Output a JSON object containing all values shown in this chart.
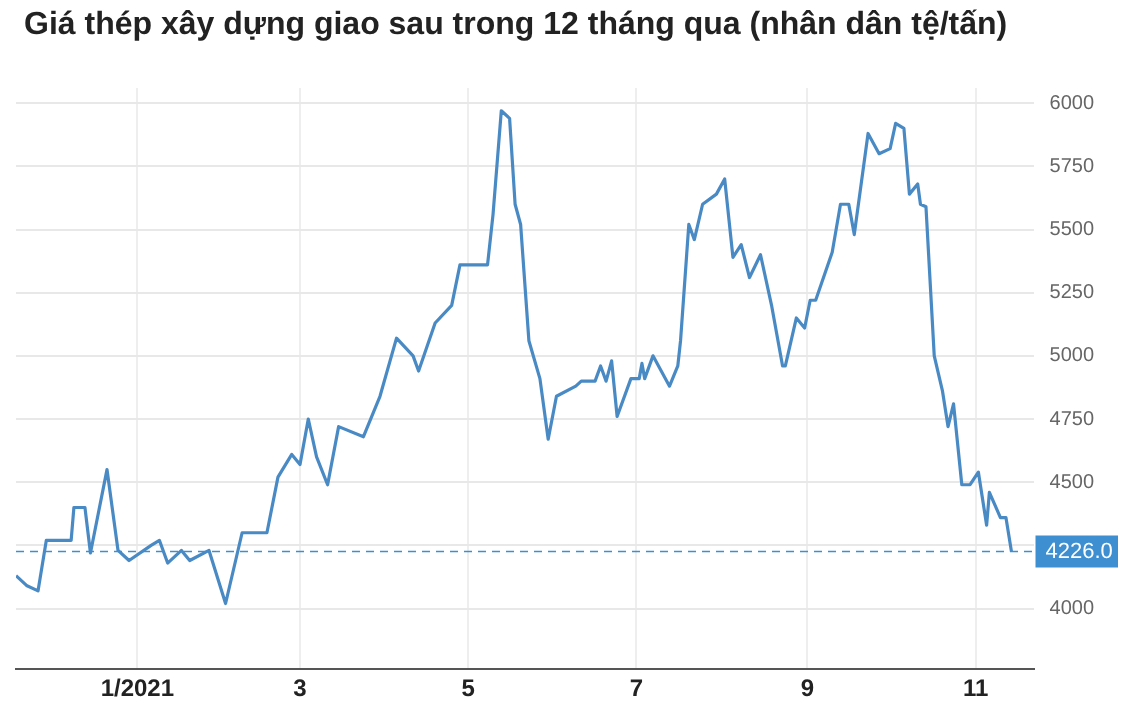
{
  "chart_data": {
    "type": "line",
    "title": "Giá thép xây dựng giao sau trong 12 tháng qua (nhân dân tệ/tấn)",
    "x": [
      "2020-11-18",
      "2020-11-22",
      "2020-11-26",
      "2020-11-29",
      "2020-12-08",
      "2020-12-09",
      "2020-12-13",
      "2020-12-15",
      "2020-12-21",
      "2020-12-25",
      "2020-12-29",
      "2021-01-06",
      "2021-01-09",
      "2021-01-12",
      "2021-01-17",
      "2021-01-20",
      "2021-01-27",
      "2021-02-02",
      "2021-02-08",
      "2021-02-17",
      "2021-02-21",
      "2021-02-26",
      "2021-03-01",
      "2021-03-04",
      "2021-03-07",
      "2021-03-11",
      "2021-03-15",
      "2021-03-24",
      "2021-03-30",
      "2021-04-05",
      "2021-04-11",
      "2021-04-13",
      "2021-04-19",
      "2021-04-25",
      "2021-04-28",
      "2021-05-08",
      "2021-05-10",
      "2021-05-13",
      "2021-05-16",
      "2021-05-18",
      "2021-05-20",
      "2021-05-23",
      "2021-05-27",
      "2021-05-30",
      "2021-06-02",
      "2021-06-09",
      "2021-06-11",
      "2021-06-16",
      "2021-06-18",
      "2021-06-20",
      "2021-06-22",
      "2021-06-24",
      "2021-06-29",
      "2021-07-02",
      "2021-07-03",
      "2021-07-04",
      "2021-07-07",
      "2021-07-10",
      "2021-07-13",
      "2021-07-16",
      "2021-07-17",
      "2021-07-20",
      "2021-07-22",
      "2021-07-25",
      "2021-07-30",
      "2021-08-02",
      "2021-08-05",
      "2021-08-08",
      "2021-08-11",
      "2021-08-15",
      "2021-08-19",
      "2021-08-23",
      "2021-08-24",
      "2021-08-28",
      "2021-08-31",
      "2021-09-02",
      "2021-09-04",
      "2021-09-10",
      "2021-09-13",
      "2021-09-16",
      "2021-09-18",
      "2021-09-23",
      "2021-09-27",
      "2021-10-01",
      "2021-10-03",
      "2021-10-06",
      "2021-10-08",
      "2021-10-11",
      "2021-10-12",
      "2021-10-14",
      "2021-10-17",
      "2021-10-20",
      "2021-10-22",
      "2021-10-24",
      "2021-10-27",
      "2021-10-30",
      "2021-11-02",
      "2021-11-05",
      "2021-11-06",
      "2021-11-10",
      "2021-11-12",
      "2021-11-14"
    ],
    "series": [
      {
        "color": "#4a8ac4",
        "values": [
          4130,
          4090,
          4070,
          4270,
          4270,
          4400,
          4400,
          4220,
          4550,
          4230,
          4190,
          4250,
          4270,
          4180,
          4230,
          4190,
          4230,
          4020,
          4300,
          4300,
          4520,
          4610,
          4570,
          4750,
          4600,
          4490,
          4720,
          4680,
          4840,
          5070,
          5000,
          4940,
          5130,
          5200,
          5360,
          5360,
          5560,
          5970,
          5940,
          5600,
          5520,
          5060,
          4910,
          4670,
          4840,
          4880,
          4900,
          4900,
          4960,
          4900,
          4980,
          4760,
          4910,
          4910,
          4970,
          4910,
          5000,
          4940,
          4880,
          4960,
          5060,
          5520,
          5460,
          5600,
          5640,
          5700,
          5390,
          5440,
          5310,
          5400,
          5200,
          4960,
          4960,
          5150,
          5110,
          5220,
          5220,
          5410,
          5600,
          5600,
          5480,
          5880,
          5800,
          5820,
          5920,
          5900,
          5640,
          5680,
          5600,
          5590,
          5000,
          4860,
          4720,
          4810,
          4490,
          4490,
          4540,
          4330,
          4460,
          4360,
          4360,
          4226
        ]
      }
    ],
    "xlim": [
      "2020-11-18",
      "2021-11-22"
    ],
    "xticks": [
      {
        "value": "2021-01-01",
        "label": "1/2021"
      },
      {
        "value": "2021-03-01",
        "label": "3"
      },
      {
        "value": "2021-05-01",
        "label": "5"
      },
      {
        "value": "2021-07-01",
        "label": "7"
      },
      {
        "value": "2021-09-01",
        "label": "9"
      },
      {
        "value": "2021-11-01",
        "label": "11"
      }
    ],
    "ylim": [
      3760,
      6060
    ],
    "yticks": [
      4000,
      {
        "value": 4250,
        "label": null
      },
      4500,
      4750,
      5000,
      5250,
      5500,
      5750,
      6000
    ],
    "grid": true,
    "marker": "none",
    "ref_lines": [
      {
        "axis": "y",
        "value": 4226,
        "label": "4226.0",
        "color": "#3d8fd1",
        "line_style": "dashed"
      }
    ]
  }
}
